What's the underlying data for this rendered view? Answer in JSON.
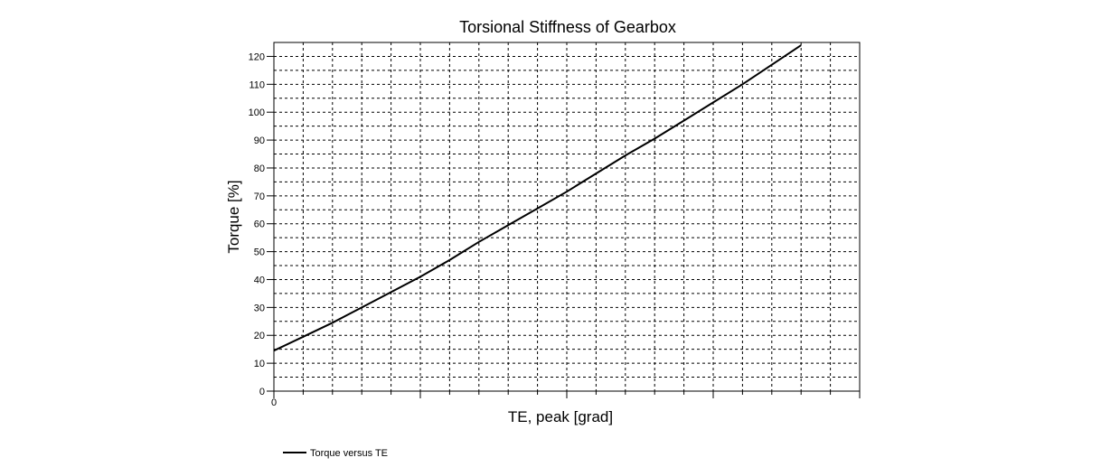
{
  "chart_data": {
    "type": "line",
    "title": "Torsional Stiffness of Gearbox",
    "xlabel": "TE, peak [grad]",
    "ylabel": "Torque [%]",
    "xlim": [
      0,
      1
    ],
    "ylim": [
      0,
      125
    ],
    "x_tick_labels": [
      {
        "value": 0,
        "label": "0"
      }
    ],
    "y_ticks": [
      0,
      10,
      20,
      30,
      40,
      50,
      60,
      70,
      80,
      90,
      100,
      110,
      120
    ],
    "grid": true,
    "legend_position": "bottom-left",
    "series": [
      {
        "name": "Torque versus TE",
        "color": "#000000",
        "x": [
          0,
          0.05,
          0.1,
          0.15,
          0.2,
          0.25,
          0.3,
          0.35,
          0.4,
          0.45,
          0.5,
          0.55,
          0.6,
          0.65,
          0.7,
          0.75,
          0.8,
          0.85,
          0.9
        ],
        "y": [
          14.5,
          19.5,
          24.5,
          30,
          35.5,
          41,
          47,
          53.5,
          59.5,
          65.5,
          71.5,
          78,
          84.5,
          90.5,
          97,
          103.5,
          110,
          117,
          124
        ]
      }
    ]
  }
}
